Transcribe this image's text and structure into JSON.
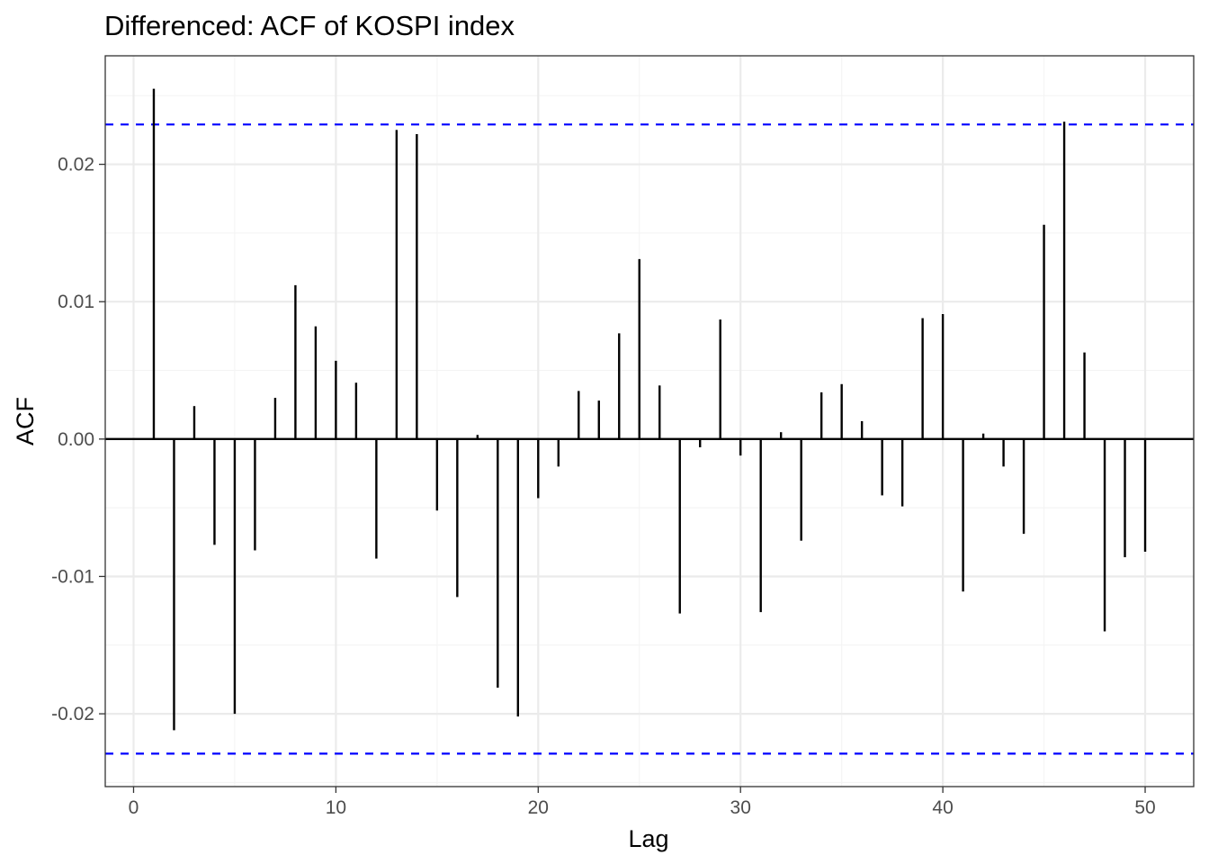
{
  "chart_data": {
    "type": "bar",
    "title": "Differenced: ACF of KOSPI index",
    "xlabel": "Lag",
    "ylabel": "ACF",
    "xlim": [
      -1.4,
      52.4
    ],
    "ylim": [
      -0.0253,
      0.0279
    ],
    "x_ticks": [
      0,
      10,
      20,
      30,
      40,
      50
    ],
    "x_tick_labels": [
      "0",
      "10",
      "20",
      "30",
      "40",
      "50"
    ],
    "y_ticks": [
      -0.02,
      -0.01,
      0.0,
      0.01,
      0.02
    ],
    "y_tick_labels": [
      "-0.02",
      "-0.01",
      "0.00",
      "0.01",
      "0.02"
    ],
    "confidence_limit": 0.0229,
    "grid": true,
    "x": [
      1,
      2,
      3,
      4,
      5,
      6,
      7,
      8,
      9,
      10,
      11,
      12,
      13,
      14,
      15,
      16,
      17,
      18,
      19,
      20,
      21,
      22,
      23,
      24,
      25,
      26,
      27,
      28,
      29,
      30,
      31,
      32,
      33,
      34,
      35,
      36,
      37,
      38,
      39,
      40,
      41,
      42,
      43,
      44,
      45,
      46,
      47,
      48,
      49,
      50
    ],
    "values": [
      0.0255,
      -0.0212,
      0.0024,
      -0.0077,
      -0.02,
      -0.0081,
      0.003,
      0.0112,
      0.0082,
      0.0057,
      0.0041,
      -0.0087,
      0.0225,
      0.0222,
      -0.0052,
      -0.0115,
      0.0003,
      -0.0181,
      -0.0202,
      -0.0043,
      -0.002,
      0.0035,
      0.0028,
      0.0077,
      0.0131,
      0.0039,
      -0.0127,
      -0.0006,
      0.0087,
      -0.0012,
      -0.0126,
      0.0005,
      -0.0074,
      0.0034,
      0.004,
      0.0013,
      -0.0041,
      -0.0049,
      0.0088,
      0.0091,
      -0.0111,
      0.0004,
      -0.002,
      -0.0069,
      0.0156,
      0.0231,
      0.0063,
      -0.014,
      -0.0086,
      -0.0082
    ],
    "colors": {
      "bars": "#000000",
      "confidence_lines": "#0000ff",
      "zero_line": "#000000",
      "grid_major": "#ebebeb",
      "grid_minor": "#f4f4f4",
      "panel_border": "#333333",
      "tick_text": "#4d4d4d"
    }
  }
}
